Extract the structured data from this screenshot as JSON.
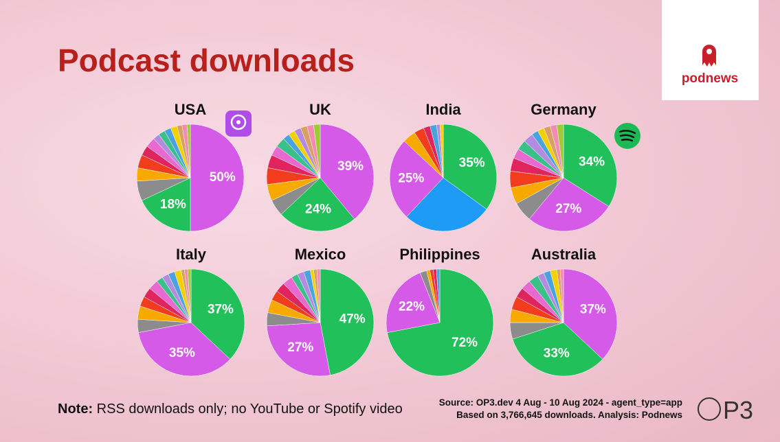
{
  "title": "Podcast downloads",
  "logos": {
    "podnews": "podnews",
    "op3": "P3"
  },
  "note": {
    "label": "Note:",
    "text": "RSS downloads only; no YouTube or Spotify video"
  },
  "source": [
    "Source: OP3.dev 4 Aug - 10 Aug 2024 - agent_type=app",
    "Based on 3,766,645 downloads. Analysis: Podnews"
  ],
  "chart_data": [
    {
      "type": "pie",
      "title": "USA",
      "values": [
        50,
        18,
        6,
        4,
        4,
        3,
        3,
        2,
        2,
        2,
        2,
        1.5,
        1.5,
        1
      ],
      "value_labels": [
        "50%",
        "18%",
        null,
        null,
        null,
        null,
        null,
        null,
        null,
        null,
        null,
        null,
        null,
        null
      ],
      "colors": [
        "#d55ae8",
        "#22c05a",
        "#8c8c8c",
        "#f8a900",
        "#f23c1e",
        "#e0245e",
        "#e86ad0",
        "#b48be0",
        "#3cc08a",
        "#4aa3df",
        "#f5d000",
        "#d9a066",
        "#f28cb1",
        "#9acd32"
      ]
    },
    {
      "type": "pie",
      "title": "UK",
      "values": [
        39,
        24,
        5,
        5,
        5,
        4,
        3,
        3,
        2,
        2,
        2,
        2,
        2,
        2
      ],
      "value_labels": [
        "39%",
        "24%",
        null,
        null,
        null,
        null,
        null,
        null,
        null,
        null,
        null,
        null,
        null,
        null
      ],
      "colors": [
        "#d55ae8",
        "#22c05a",
        "#8c8c8c",
        "#f8a900",
        "#f23c1e",
        "#e0245e",
        "#e86ad0",
        "#3cc08a",
        "#4aa3df",
        "#f5d000",
        "#b48be0",
        "#d9a066",
        "#f28cb1",
        "#9acd32"
      ]
    },
    {
      "type": "pie",
      "title": "India",
      "values": [
        35,
        27,
        25,
        4,
        3,
        2,
        2,
        1,
        1
      ],
      "value_labels": [
        "35%",
        null,
        "25%",
        null,
        null,
        null,
        null,
        null,
        null
      ],
      "colors": [
        "#22c05a",
        "#1e9bf5",
        "#d55ae8",
        "#f8a900",
        "#f23c1e",
        "#e0245e",
        "#4aa3df",
        "#b48be0",
        "#f5d000"
      ]
    },
    {
      "type": "pie",
      "title": "Germany",
      "values": [
        34,
        27,
        6,
        5,
        5,
        4,
        3,
        3,
        3,
        2,
        2,
        2,
        2,
        2
      ],
      "value_labels": [
        "34%",
        "27%",
        null,
        null,
        null,
        null,
        null,
        null,
        null,
        null,
        null,
        null,
        null,
        null
      ],
      "colors": [
        "#22c05a",
        "#d55ae8",
        "#8c8c8c",
        "#f8a900",
        "#f23c1e",
        "#e0245e",
        "#e86ad0",
        "#3cc08a",
        "#b48be0",
        "#4aa3df",
        "#f5d000",
        "#d9a066",
        "#f28cb1",
        "#9acd32"
      ]
    },
    {
      "type": "pie",
      "title": "Italy",
      "values": [
        37,
        35,
        4,
        4,
        3,
        3,
        3,
        2,
        2,
        2,
        2,
        1,
        1,
        1
      ],
      "value_labels": [
        "37%",
        "35%",
        null,
        null,
        null,
        null,
        null,
        null,
        null,
        null,
        null,
        null,
        null,
        null
      ],
      "colors": [
        "#22c05a",
        "#d55ae8",
        "#8c8c8c",
        "#f8a900",
        "#f23c1e",
        "#e0245e",
        "#e86ad0",
        "#3cc08a",
        "#b48be0",
        "#4aa3df",
        "#f5d000",
        "#d9a066",
        "#f28cb1",
        "#9acd32"
      ]
    },
    {
      "type": "pie",
      "title": "Mexico",
      "values": [
        47,
        27,
        4,
        4,
        3,
        3,
        3,
        2,
        2,
        2,
        1,
        1,
        1
      ],
      "value_labels": [
        "47%",
        "27%",
        null,
        null,
        null,
        null,
        null,
        null,
        null,
        null,
        null,
        null,
        null
      ],
      "colors": [
        "#22c05a",
        "#d55ae8",
        "#8c8c8c",
        "#f8a900",
        "#f23c1e",
        "#e0245e",
        "#e86ad0",
        "#3cc08a",
        "#b48be0",
        "#4aa3df",
        "#f5d000",
        "#d9a066",
        "#f28cb1"
      ]
    },
    {
      "type": "pie",
      "title": "Philippines",
      "values": [
        72,
        22,
        2,
        1,
        1,
        1,
        1
      ],
      "value_labels": [
        "72%",
        "22%",
        null,
        null,
        null,
        null,
        null
      ],
      "colors": [
        "#22c05a",
        "#d55ae8",
        "#8c8c8c",
        "#f8a900",
        "#f23c1e",
        "#e0245e",
        "#4aa3df"
      ]
    },
    {
      "type": "pie",
      "title": "Australia",
      "values": [
        37,
        33,
        5,
        4,
        4,
        3,
        3,
        3,
        2,
        2,
        2,
        1,
        1
      ],
      "value_labels": [
        "37%",
        "33%",
        null,
        null,
        null,
        null,
        null,
        null,
        null,
        null,
        null,
        null,
        null
      ],
      "colors": [
        "#d55ae8",
        "#22c05a",
        "#8c8c8c",
        "#f8a900",
        "#f23c1e",
        "#e0245e",
        "#e86ad0",
        "#3cc08a",
        "#b48be0",
        "#4aa3df",
        "#f5d000",
        "#d9a066",
        "#f28cb1"
      ]
    }
  ]
}
